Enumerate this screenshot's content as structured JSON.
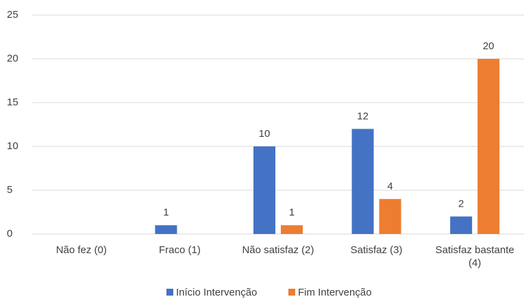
{
  "chart_data": {
    "type": "bar",
    "categories": [
      "Não fez (0)",
      "Fraco (1)",
      "Não satisfaz (2)",
      "Satisfaz (3)",
      "Satisfaz bastante (4)"
    ],
    "series": [
      {
        "name": "Início Intervenção",
        "color": "#4472c4",
        "values": [
          0,
          1,
          10,
          12,
          2
        ]
      },
      {
        "name": "Fim Intervenção",
        "color": "#ed7d31",
        "values": [
          0,
          0,
          1,
          4,
          20
        ]
      }
    ],
    "ylim": [
      0,
      25
    ],
    "yticks": [
      0,
      5,
      10,
      15,
      20,
      25
    ],
    "grid": true,
    "legend": "bottom"
  }
}
